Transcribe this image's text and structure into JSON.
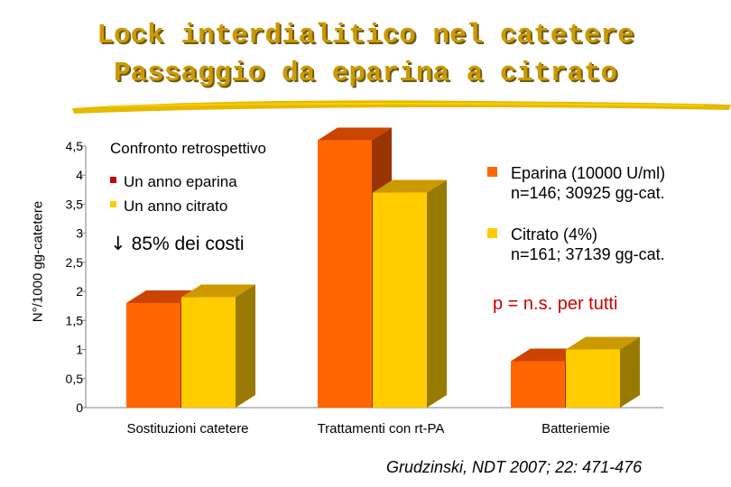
{
  "slide": {
    "title_line1": "Lock interdialitico nel catetere",
    "title_line2": "Passaggio da eparina a citrato",
    "subtitle": "Confronto retrospettivo",
    "left_legend": [
      "Un anno eparina",
      "Un anno citrato"
    ],
    "arrow_text": "85% dei costi",
    "right_legend": [
      {
        "line1": "Eparina (10000 U/ml)",
        "line2": "n=146; 30925 gg-cat."
      },
      {
        "line1": "Citrato (4%)",
        "line2": "n=161; 37139 gg-cat."
      }
    ],
    "pvalue_text": "p = n.s. per tutti",
    "citation": "Grudzinski, NDT 2007; 22: 471-476"
  },
  "colors": {
    "eparina": "#ff6600",
    "eparina_top": "#cc4400",
    "eparina_side": "#993300",
    "citrato": "#ffcc00",
    "citrato_top": "#cc9900",
    "citrato_side": "#997a00",
    "title": "#cc9a00",
    "pvalue": "#cc0000",
    "marker_red": "#cc0000",
    "marker_yellow": "#ffcc00"
  },
  "chart_data": {
    "type": "bar",
    "categories": [
      "Sostituzioni catetere",
      "Trattamenti con rt-PA",
      "Batteriemie"
    ],
    "series": [
      {
        "name": "Eparina (10000 U/ml)",
        "values": [
          1.8,
          4.6,
          0.8
        ]
      },
      {
        "name": "Citrato (4%)",
        "values": [
          1.9,
          3.7,
          1.0
        ]
      }
    ],
    "ylabel": "N°/1000 gg-catetere",
    "ylim": [
      0,
      4.5
    ],
    "yticks": [
      "0",
      "0,5",
      "1",
      "1,5",
      "2",
      "2,5",
      "3",
      "3,5",
      "4",
      "4,5"
    ]
  }
}
